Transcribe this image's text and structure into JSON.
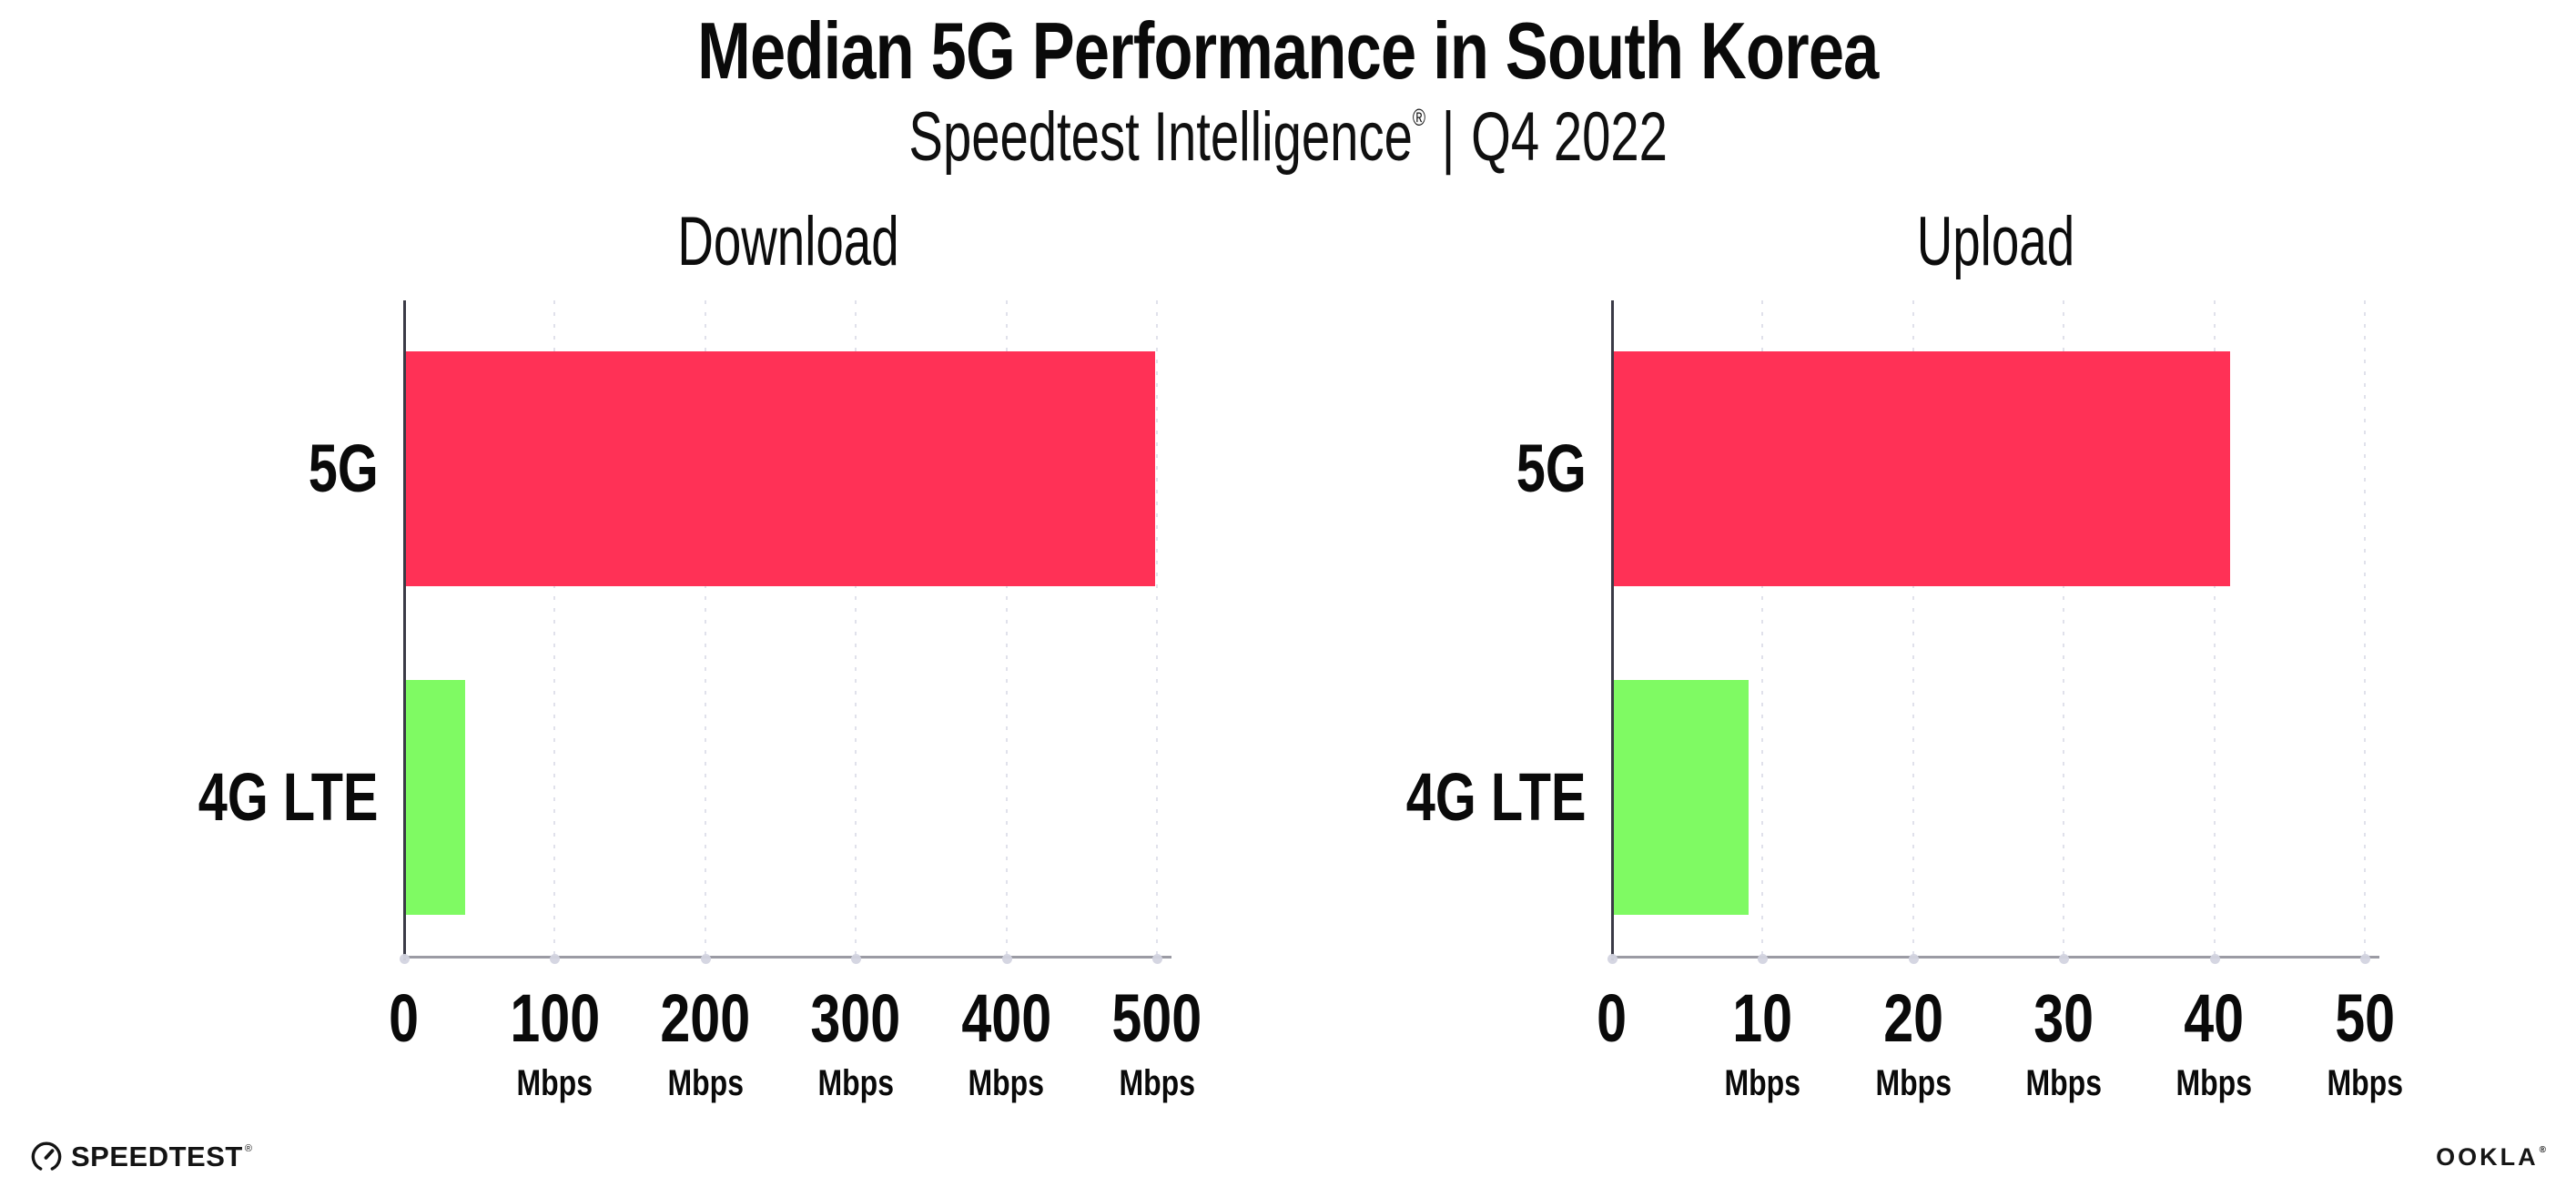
{
  "header": {
    "title": "Median 5G Performance in South Korea",
    "subtitle_brand": "Speedtest Intelligence",
    "subtitle_reg": "®",
    "subtitle_sep": "|",
    "subtitle_period": "Q4 2022"
  },
  "chart_data": [
    {
      "type": "bar",
      "orientation": "horizontal",
      "title": "Download",
      "categories": [
        "5G",
        "4G LTE"
      ],
      "values": [
        498,
        40
      ],
      "unit": "Mbps",
      "xlim": [
        0,
        500
      ],
      "xticks": [
        {
          "value": 0,
          "label": "0",
          "unit": ""
        },
        {
          "value": 100,
          "label": "100",
          "unit": "Mbps"
        },
        {
          "value": 200,
          "label": "200",
          "unit": "Mbps"
        },
        {
          "value": 300,
          "label": "300",
          "unit": "Mbps"
        },
        {
          "value": 400,
          "label": "400",
          "unit": "Mbps"
        },
        {
          "value": 500,
          "label": "500",
          "unit": "Mbps"
        }
      ],
      "bar_colors": [
        "#FF3156",
        "#7FFA63"
      ],
      "grid": "vertical-dotted",
      "legend": "none"
    },
    {
      "type": "bar",
      "orientation": "horizontal",
      "title": "Upload",
      "categories": [
        "5G",
        "4G LTE"
      ],
      "values": [
        41,
        9
      ],
      "unit": "Mbps",
      "xlim": [
        0,
        50
      ],
      "xticks": [
        {
          "value": 0,
          "label": "0",
          "unit": ""
        },
        {
          "value": 10,
          "label": "10",
          "unit": "Mbps"
        },
        {
          "value": 20,
          "label": "20",
          "unit": "Mbps"
        },
        {
          "value": 30,
          "label": "30",
          "unit": "Mbps"
        },
        {
          "value": 40,
          "label": "40",
          "unit": "Mbps"
        },
        {
          "value": 50,
          "label": "50",
          "unit": "Mbps"
        }
      ],
      "bar_colors": [
        "#FF3156",
        "#7FFA63"
      ],
      "grid": "vertical-dotted",
      "legend": "none"
    }
  ],
  "footer": {
    "speedtest_label": "SPEEDTEST",
    "speedtest_reg": "®",
    "speedtest_icon": "speedtest-gauge-icon",
    "ookla_label": "OOKLA",
    "ookla_reg": "®"
  },
  "colors": {
    "bar_5g": "#FF3156",
    "bar_4g_lte": "#7FFA63",
    "gridline": "#E0E1EB",
    "x_axis": "#9B9BA4",
    "y_axis": "#3A3A46",
    "text": "#0A0A0A"
  }
}
